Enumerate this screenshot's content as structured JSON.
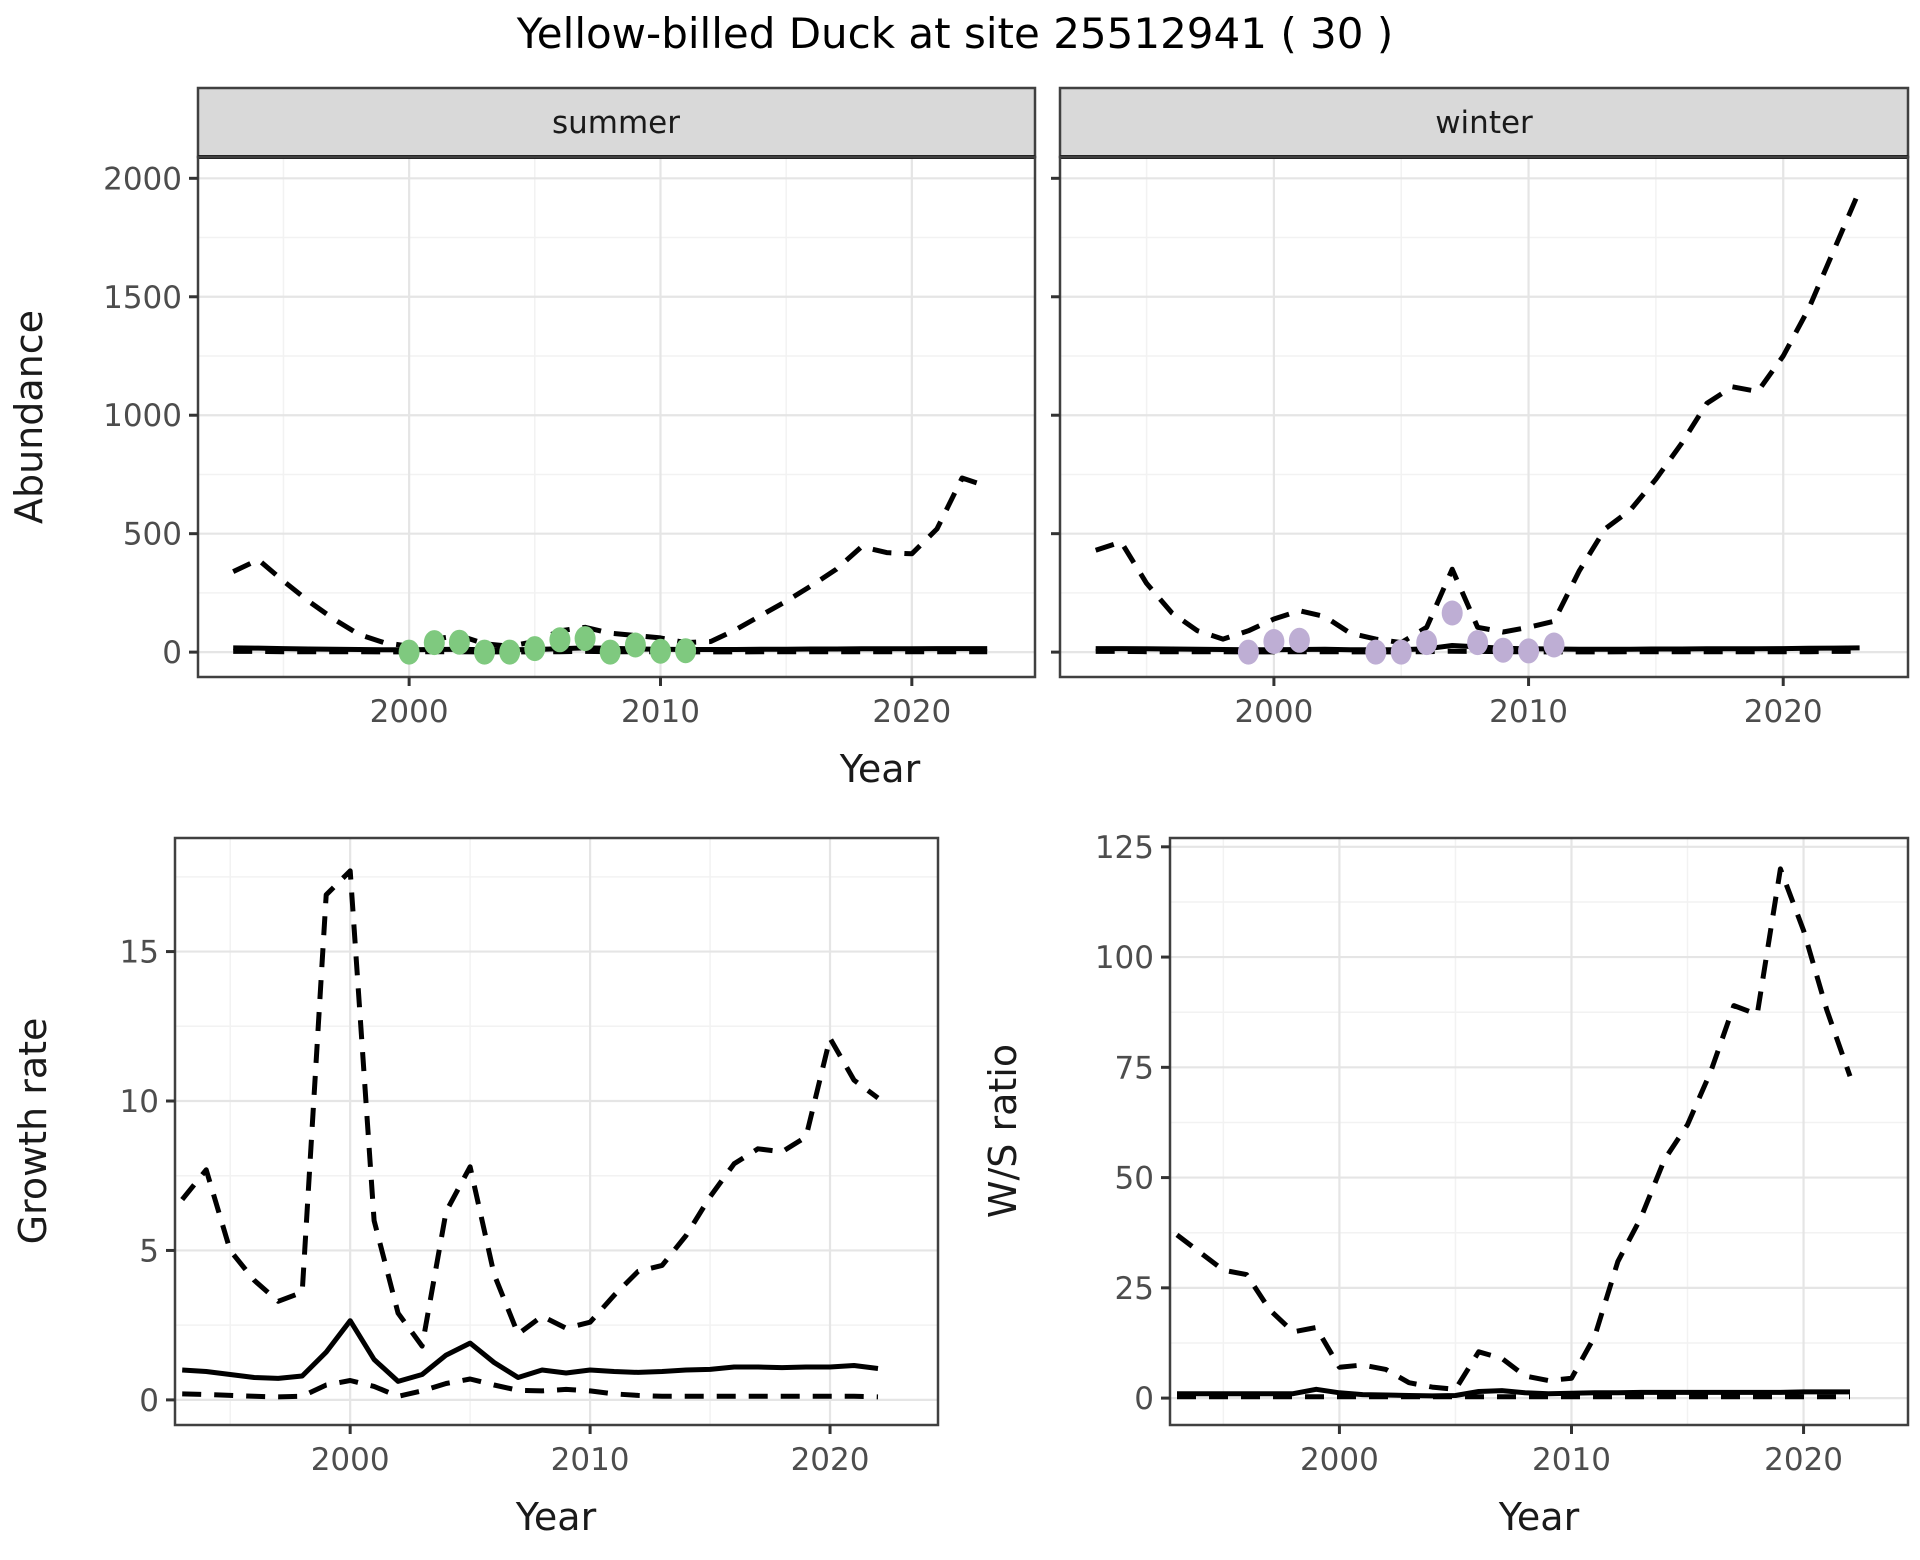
{
  "title": "Yellow-billed Duck at site 25512941 ( 30 )",
  "axis_labels": {
    "x": "Year",
    "y_abundance": "Abundance",
    "y_growth": "Growth rate",
    "y_ws": "W/S ratio"
  },
  "facets": {
    "summer": "summer",
    "winter": "winter"
  },
  "colors": {
    "summer_points": "#7FC97F",
    "winter_points": "#BEAED4",
    "line": "#000000",
    "strip_bg": "#D9D9D9",
    "panel_border": "#404040",
    "grid_major": "#E5E5E5",
    "grid_minor": "#F2F2F2",
    "tick_text": "#4D4D4D"
  },
  "chart_data": [
    {
      "id": "abundance_summer",
      "type": "line",
      "facet": "summer",
      "xlabel": "Year",
      "ylabel": "Abundance",
      "x": [
        1993,
        1994,
        1995,
        1996,
        1997,
        1998,
        1999,
        2000,
        2001,
        2002,
        2003,
        2004,
        2005,
        2006,
        2007,
        2008,
        2009,
        2010,
        2011,
        2012,
        2013,
        2014,
        2015,
        2016,
        2017,
        2018,
        2019,
        2020,
        2021,
        2022,
        2023
      ],
      "series": [
        {
          "name": "upper_95ci",
          "style": "dashed",
          "values": [
            340,
            390,
            300,
            215,
            140,
            75,
            40,
            25,
            55,
            70,
            35,
            25,
            45,
            90,
            105,
            80,
            70,
            60,
            40,
            45,
            95,
            155,
            215,
            280,
            350,
            445,
            420,
            415,
            520,
            735,
            700
          ]
        },
        {
          "name": "median",
          "style": "solid",
          "values": [
            18,
            17,
            15,
            13,
            12,
            11,
            10,
            10,
            11,
            12,
            10,
            10,
            11,
            14,
            18,
            16,
            13,
            12,
            11,
            11,
            11,
            12,
            12,
            13,
            13,
            14,
            14,
            14,
            15,
            15,
            15
          ]
        },
        {
          "name": "lower_95ci",
          "style": "dashed",
          "values": [
            3,
            3,
            2,
            2,
            2,
            2,
            1,
            1,
            2,
            2,
            1,
            1,
            1,
            2,
            3,
            2,
            2,
            2,
            1,
            1,
            1,
            2,
            2,
            2,
            2,
            2,
            2,
            2,
            2,
            2,
            2
          ]
        }
      ],
      "observed_points": {
        "name": "observed-summer-counts",
        "color": "#7FC97F",
        "x": [
          2000,
          2001,
          2002,
          2003,
          2004,
          2005,
          2006,
          2007,
          2008,
          2009,
          2010,
          2011
        ],
        "values": [
          0,
          40,
          42,
          0,
          0,
          15,
          52,
          57,
          0,
          30,
          4,
          6
        ]
      },
      "x_ticks": [
        2000,
        2010,
        2020
      ],
      "y_ticks": [
        0,
        500,
        1000,
        1500,
        2000
      ],
      "xlim": [
        1991.6,
        2024.9
      ],
      "ylim": [
        -105,
        2090
      ],
      "show_y_tick_labels": true
    },
    {
      "id": "abundance_winter",
      "type": "line",
      "facet": "winter",
      "xlabel": "Year",
      "ylabel": "Abundance",
      "x": [
        1993,
        1994,
        1995,
        1996,
        1997,
        1998,
        1999,
        2000,
        2001,
        2002,
        2003,
        2004,
        2005,
        2006,
        2007,
        2008,
        2009,
        2010,
        2011,
        2012,
        2013,
        2014,
        2015,
        2016,
        2017,
        2018,
        2019,
        2020,
        2021,
        2022,
        2023
      ],
      "series": [
        {
          "name": "upper_95ci",
          "style": "dashed",
          "values": [
            430,
            465,
            290,
            165,
            90,
            55,
            90,
            140,
            175,
            150,
            80,
            55,
            40,
            105,
            350,
            105,
            85,
            105,
            130,
            345,
            520,
            600,
            730,
            880,
            1050,
            1120,
            1100,
            1250,
            1450,
            1700,
            1950
          ]
        },
        {
          "name": "median",
          "style": "solid",
          "values": [
            15,
            15,
            14,
            13,
            12,
            11,
            10,
            10,
            11,
            12,
            10,
            10,
            10,
            14,
            28,
            22,
            16,
            14,
            13,
            12,
            12,
            12,
            13,
            13,
            14,
            14,
            14,
            15,
            16,
            17,
            18
          ]
        },
        {
          "name": "lower_95ci",
          "style": "dashed",
          "values": [
            3,
            3,
            2,
            2,
            2,
            2,
            1,
            1,
            2,
            2,
            1,
            1,
            1,
            2,
            4,
            3,
            2,
            2,
            1,
            1,
            1,
            2,
            2,
            2,
            2,
            2,
            2,
            2,
            2,
            3,
            3
          ]
        }
      ],
      "observed_points": {
        "name": "observed-winter-counts",
        "color": "#BEAED4",
        "x": [
          1999,
          2000,
          2001,
          2004,
          2005,
          2006,
          2007,
          2008,
          2009,
          2010,
          2011
        ],
        "values": [
          0,
          45,
          50,
          0,
          0,
          40,
          165,
          40,
          8,
          5,
          30
        ]
      },
      "x_ticks": [
        2000,
        2010,
        2020
      ],
      "y_ticks": [
        0,
        500,
        1000,
        1500,
        2000
      ],
      "xlim": [
        1991.6,
        2024.9
      ],
      "ylim": [
        -105,
        2090
      ],
      "show_y_tick_labels": false
    },
    {
      "id": "growth_rate",
      "type": "line",
      "facet": null,
      "xlabel": "Year",
      "ylabel": "Growth rate",
      "x": [
        1993,
        1994,
        1995,
        1996,
        1997,
        1998,
        1999,
        2000,
        2001,
        2002,
        2003,
        2004,
        2005,
        2006,
        2007,
        2008,
        2009,
        2010,
        2011,
        2012,
        2013,
        2014,
        2015,
        2016,
        2017,
        2018,
        2019,
        2020,
        2021,
        2022
      ],
      "series": [
        {
          "name": "upper_95ci",
          "style": "dashed",
          "values": [
            6.7,
            7.7,
            5.0,
            4.0,
            3.3,
            3.6,
            16.9,
            17.7,
            6.0,
            2.9,
            1.8,
            6.3,
            7.8,
            4.2,
            2.2,
            2.8,
            2.4,
            2.6,
            3.5,
            4.3,
            4.5,
            5.5,
            6.8,
            7.9,
            8.4,
            8.3,
            8.8,
            12.1,
            10.7,
            10.1
          ]
        },
        {
          "name": "median",
          "style": "solid",
          "values": [
            1.0,
            0.95,
            0.85,
            0.75,
            0.72,
            0.8,
            1.6,
            2.65,
            1.35,
            0.62,
            0.85,
            1.5,
            1.9,
            1.25,
            0.75,
            1.0,
            0.9,
            1.0,
            0.95,
            0.92,
            0.95,
            1.0,
            1.02,
            1.1,
            1.1,
            1.08,
            1.1,
            1.1,
            1.15,
            1.05
          ]
        },
        {
          "name": "lower_95ci",
          "style": "dashed",
          "values": [
            0.2,
            0.18,
            0.15,
            0.12,
            0.1,
            0.12,
            0.5,
            0.65,
            0.45,
            0.12,
            0.3,
            0.55,
            0.7,
            0.5,
            0.32,
            0.3,
            0.35,
            0.3,
            0.2,
            0.15,
            0.12,
            0.12,
            0.12,
            0.12,
            0.12,
            0.12,
            0.12,
            0.12,
            0.12,
            0.1
          ]
        }
      ],
      "observed_points": null,
      "x_ticks": [
        2000,
        2010,
        2020
      ],
      "y_ticks": [
        0,
        5,
        10,
        15
      ],
      "xlim": [
        1992.7,
        2024.5
      ],
      "ylim": [
        -0.84,
        18.8
      ],
      "show_y_tick_labels": true
    },
    {
      "id": "ws_ratio",
      "type": "line",
      "facet": null,
      "xlabel": "Year",
      "ylabel": "W/S ratio",
      "x": [
        1993,
        1994,
        1995,
        1996,
        1997,
        1998,
        1999,
        2000,
        2001,
        2002,
        2003,
        2004,
        2005,
        2006,
        2007,
        2008,
        2009,
        2010,
        2011,
        2012,
        2013,
        2014,
        2015,
        2016,
        2017,
        2018,
        2019,
        2020,
        2021,
        2022
      ],
      "series": [
        {
          "name": "upper_95ci",
          "style": "dashed",
          "values": [
            37,
            33,
            29,
            28,
            20,
            15,
            16,
            7,
            7.5,
            6.5,
            3.5,
            2.5,
            2,
            10.5,
            9,
            5,
            4,
            4.5,
            14,
            31,
            41,
            54,
            62,
            74,
            89,
            87,
            120,
            106,
            88,
            73
          ]
        },
        {
          "name": "median",
          "style": "solid",
          "values": [
            1,
            1,
            1,
            1,
            1,
            1,
            2,
            1.2,
            0.8,
            0.7,
            0.6,
            0.5,
            0.6,
            1.5,
            1.7,
            1.2,
            1,
            1.1,
            1.2,
            1.2,
            1.3,
            1.3,
            1.3,
            1.3,
            1.3,
            1.3,
            1.3,
            1.4,
            1.4,
            1.4
          ]
        },
        {
          "name": "lower_95ci",
          "style": "dashed",
          "values": [
            0.3,
            0.3,
            0.3,
            0.3,
            0.3,
            0.3,
            0.3,
            0.3,
            0.3,
            0.3,
            0.3,
            0.3,
            0.3,
            0.3,
            0.3,
            0.3,
            0.3,
            0.3,
            0.3,
            0.3,
            0.3,
            0.3,
            0.3,
            0.3,
            0.3,
            0.3,
            0.3,
            0.3,
            0.3,
            0.3
          ]
        }
      ],
      "observed_points": null,
      "x_ticks": [
        2000,
        2010,
        2020
      ],
      "y_ticks": [
        0,
        25,
        50,
        75,
        100,
        125
      ],
      "xlim": [
        1992.7,
        2024.5
      ],
      "ylim": [
        -6.1,
        127
      ],
      "show_y_tick_labels": true
    }
  ]
}
